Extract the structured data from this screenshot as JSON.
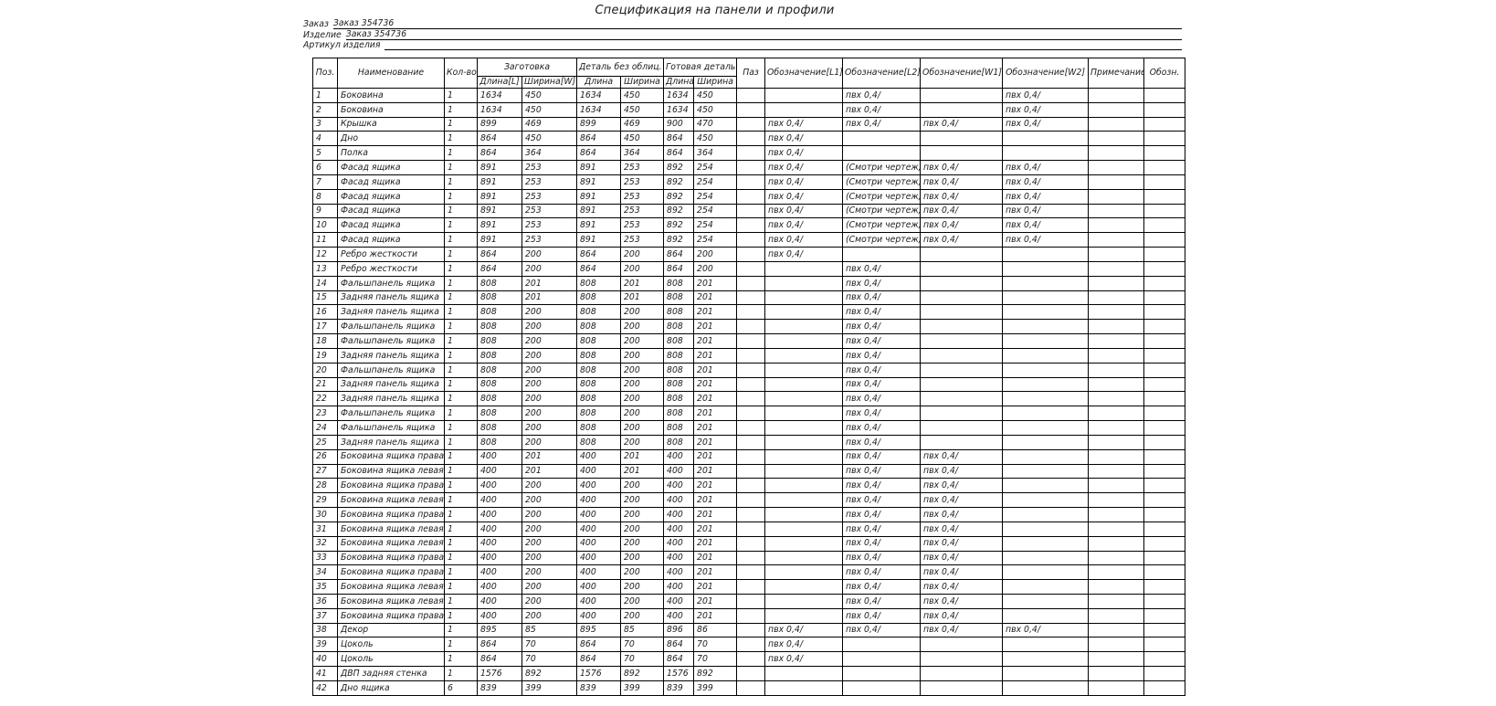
{
  "title": "Спецификация на панели и профили",
  "fields": [
    {
      "label": "Заказ",
      "value": "Заказ 354736"
    },
    {
      "label": "Изделие",
      "value": "Заказ 354736"
    },
    {
      "label": "Артикул изделия",
      "value": ""
    }
  ],
  "table": {
    "header": {
      "pos": "Поз.",
      "name": "Наименование",
      "qty": "Кол-во",
      "blank_group": "Заготовка",
      "blank_len": "Длина[L]",
      "blank_wid": "Ширина[W]",
      "nofacing_group": "Деталь без облиц.",
      "nofacing_len": "Длина",
      "nofacing_wid": "Ширина",
      "finished_group": "Готовая деталь",
      "finished_len": "Длина",
      "finished_wid": "Ширина",
      "paz": "Паз",
      "mark_l1": "Обозначение[L1]",
      "mark_l2": "Обозначение[L2]",
      "mark_w1": "Обозначение[W1]",
      "mark_w2": "Обозначение[W2]",
      "note": "Примечание",
      "obozn": "Обозн."
    },
    "rows": [
      [
        "1",
        "Боковина",
        "1",
        "1634",
        "450",
        "1634",
        "450",
        "1634",
        "450",
        "",
        "",
        "пвх 0,4/",
        "",
        "пвх 0,4/",
        "",
        ""
      ],
      [
        "2",
        "Боковина",
        "1",
        "1634",
        "450",
        "1634",
        "450",
        "1634",
        "450",
        "",
        "",
        "пвх 0,4/",
        "",
        "пвх 0,4/",
        "",
        ""
      ],
      [
        "3",
        "Крышка",
        "1",
        "899",
        "469",
        "899",
        "469",
        "900",
        "470",
        "",
        "пвх 0,4/",
        "пвх 0,4/",
        "пвх 0,4/",
        "пвх 0,4/",
        "",
        ""
      ],
      [
        "4",
        "Дно",
        "1",
        "864",
        "450",
        "864",
        "450",
        "864",
        "450",
        "",
        "пвх 0,4/",
        "",
        "",
        "",
        "",
        ""
      ],
      [
        "5",
        "Полка",
        "1",
        "864",
        "364",
        "864",
        "364",
        "864",
        "364",
        "",
        "пвх 0,4/",
        "",
        "",
        "",
        "",
        ""
      ],
      [
        "6",
        "Фасад ящика",
        "1",
        "891",
        "253",
        "891",
        "253",
        "892",
        "254",
        "",
        "пвх 0,4/",
        "(Смотри чертеж)",
        "пвх 0,4/",
        "пвх 0,4/",
        "",
        ""
      ],
      [
        "7",
        "Фасад ящика",
        "1",
        "891",
        "253",
        "891",
        "253",
        "892",
        "254",
        "",
        "пвх 0,4/",
        "(Смотри чертеж)",
        "пвх 0,4/",
        "пвх 0,4/",
        "",
        ""
      ],
      [
        "8",
        "Фасад ящика",
        "1",
        "891",
        "253",
        "891",
        "253",
        "892",
        "254",
        "",
        "пвх 0,4/",
        "(Смотри чертеж)",
        "пвх 0,4/",
        "пвх 0,4/",
        "",
        ""
      ],
      [
        "9",
        "Фасад ящика",
        "1",
        "891",
        "253",
        "891",
        "253",
        "892",
        "254",
        "",
        "пвх 0,4/",
        "(Смотри чертеж)",
        "пвх 0,4/",
        "пвх 0,4/",
        "",
        ""
      ],
      [
        "10",
        "Фасад ящика",
        "1",
        "891",
        "253",
        "891",
        "253",
        "892",
        "254",
        "",
        "пвх 0,4/",
        "(Смотри чертеж)",
        "пвх 0,4/",
        "пвх 0,4/",
        "",
        ""
      ],
      [
        "11",
        "Фасад ящика",
        "1",
        "891",
        "253",
        "891",
        "253",
        "892",
        "254",
        "",
        "пвх 0,4/",
        "(Смотри чертеж)",
        "пвх 0,4/",
        "пвх 0,4/",
        "",
        ""
      ],
      [
        "12",
        "Ребро жесткости",
        "1",
        "864",
        "200",
        "864",
        "200",
        "864",
        "200",
        "",
        "пвх 0,4/",
        "",
        "",
        "",
        "",
        ""
      ],
      [
        "13",
        "Ребро жесткости",
        "1",
        "864",
        "200",
        "864",
        "200",
        "864",
        "200",
        "",
        "",
        "пвх 0,4/",
        "",
        "",
        "",
        ""
      ],
      [
        "14",
        "Фальшпанель ящика",
        "1",
        "808",
        "201",
        "808",
        "201",
        "808",
        "201",
        "",
        "",
        "пвх 0,4/",
        "",
        "",
        "",
        ""
      ],
      [
        "15",
        "Задняя панель ящика",
        "1",
        "808",
        "201",
        "808",
        "201",
        "808",
        "201",
        "",
        "",
        "пвх 0,4/",
        "",
        "",
        "",
        ""
      ],
      [
        "16",
        "Задняя панель ящика",
        "1",
        "808",
        "200",
        "808",
        "200",
        "808",
        "201",
        "",
        "",
        "пвх 0,4/",
        "",
        "",
        "",
        ""
      ],
      [
        "17",
        "Фальшпанель ящика",
        "1",
        "808",
        "200",
        "808",
        "200",
        "808",
        "201",
        "",
        "",
        "пвх 0,4/",
        "",
        "",
        "",
        ""
      ],
      [
        "18",
        "Фальшпанель ящика",
        "1",
        "808",
        "200",
        "808",
        "200",
        "808",
        "201",
        "",
        "",
        "пвх 0,4/",
        "",
        "",
        "",
        ""
      ],
      [
        "19",
        "Задняя панель ящика",
        "1",
        "808",
        "200",
        "808",
        "200",
        "808",
        "201",
        "",
        "",
        "пвх 0,4/",
        "",
        "",
        "",
        ""
      ],
      [
        "20",
        "Фальшпанель ящика",
        "1",
        "808",
        "200",
        "808",
        "200",
        "808",
        "201",
        "",
        "",
        "пвх 0,4/",
        "",
        "",
        "",
        ""
      ],
      [
        "21",
        "Задняя панель ящика",
        "1",
        "808",
        "200",
        "808",
        "200",
        "808",
        "201",
        "",
        "",
        "пвх 0,4/",
        "",
        "",
        "",
        ""
      ],
      [
        "22",
        "Задняя панель ящика",
        "1",
        "808",
        "200",
        "808",
        "200",
        "808",
        "201",
        "",
        "",
        "пвх 0,4/",
        "",
        "",
        "",
        ""
      ],
      [
        "23",
        "Фальшпанель ящика",
        "1",
        "808",
        "200",
        "808",
        "200",
        "808",
        "201",
        "",
        "",
        "пвх 0,4/",
        "",
        "",
        "",
        ""
      ],
      [
        "24",
        "Фальшпанель ящика",
        "1",
        "808",
        "200",
        "808",
        "200",
        "808",
        "201",
        "",
        "",
        "пвх 0,4/",
        "",
        "",
        "",
        ""
      ],
      [
        "25",
        "Задняя панель ящика",
        "1",
        "808",
        "200",
        "808",
        "200",
        "808",
        "201",
        "",
        "",
        "пвх 0,4/",
        "",
        "",
        "",
        ""
      ],
      [
        "26",
        "Боковина ящика правая",
        "1",
        "400",
        "201",
        "400",
        "201",
        "400",
        "201",
        "",
        "",
        "пвх 0,4/",
        "пвх 0,4/",
        "",
        "",
        ""
      ],
      [
        "27",
        "Боковина ящика левая",
        "1",
        "400",
        "201",
        "400",
        "201",
        "400",
        "201",
        "",
        "",
        "пвх 0,4/",
        "пвх 0,4/",
        "",
        "",
        ""
      ],
      [
        "28",
        "Боковина ящика правая",
        "1",
        "400",
        "200",
        "400",
        "200",
        "400",
        "201",
        "",
        "",
        "пвх 0,4/",
        "пвх 0,4/",
        "",
        "",
        ""
      ],
      [
        "29",
        "Боковина ящика левая",
        "1",
        "400",
        "200",
        "400",
        "200",
        "400",
        "201",
        "",
        "",
        "пвх 0,4/",
        "пвх 0,4/",
        "",
        "",
        ""
      ],
      [
        "30",
        "Боковина ящика правая",
        "1",
        "400",
        "200",
        "400",
        "200",
        "400",
        "201",
        "",
        "",
        "пвх 0,4/",
        "пвх 0,4/",
        "",
        "",
        ""
      ],
      [
        "31",
        "Боковина ящика левая",
        "1",
        "400",
        "200",
        "400",
        "200",
        "400",
        "201",
        "",
        "",
        "пвх 0,4/",
        "пвх 0,4/",
        "",
        "",
        ""
      ],
      [
        "32",
        "Боковина ящика левая",
        "1",
        "400",
        "200",
        "400",
        "200",
        "400",
        "201",
        "",
        "",
        "пвх 0,4/",
        "пвх 0,4/",
        "",
        "",
        ""
      ],
      [
        "33",
        "Боковина ящика правая",
        "1",
        "400",
        "200",
        "400",
        "200",
        "400",
        "201",
        "",
        "",
        "пвх 0,4/",
        "пвх 0,4/",
        "",
        "",
        ""
      ],
      [
        "34",
        "Боковина ящика правая",
        "1",
        "400",
        "200",
        "400",
        "200",
        "400",
        "201",
        "",
        "",
        "пвх 0,4/",
        "пвх 0,4/",
        "",
        "",
        ""
      ],
      [
        "35",
        "Боковина ящика левая",
        "1",
        "400",
        "200",
        "400",
        "200",
        "400",
        "201",
        "",
        "",
        "пвх 0,4/",
        "пвх 0,4/",
        "",
        "",
        ""
      ],
      [
        "36",
        "Боковина ящика левая",
        "1",
        "400",
        "200",
        "400",
        "200",
        "400",
        "201",
        "",
        "",
        "пвх 0,4/",
        "пвх 0,4/",
        "",
        "",
        ""
      ],
      [
        "37",
        "Боковина ящика правая",
        "1",
        "400",
        "200",
        "400",
        "200",
        "400",
        "201",
        "",
        "",
        "пвх 0,4/",
        "пвх 0,4/",
        "",
        "",
        ""
      ],
      [
        "38",
        "Декор",
        "1",
        "895",
        "85",
        "895",
        "85",
        "896",
        "86",
        "",
        "пвх 0,4/",
        "пвх 0,4/",
        "пвх 0,4/",
        "пвх 0,4/",
        "",
        ""
      ],
      [
        "39",
        "Цоколь",
        "1",
        "864",
        "70",
        "864",
        "70",
        "864",
        "70",
        "",
        "пвх 0,4/",
        "",
        "",
        "",
        "",
        ""
      ],
      [
        "40",
        "Цоколь",
        "1",
        "864",
        "70",
        "864",
        "70",
        "864",
        "70",
        "",
        "пвх 0,4/",
        "",
        "",
        "",
        "",
        ""
      ],
      [
        "41",
        "ДВП задняя стенка",
        "1",
        "1576",
        "892",
        "1576",
        "892",
        "1576",
        "892",
        "",
        "",
        "",
        "",
        "",
        "",
        ""
      ],
      [
        "42",
        "Дно ящика",
        "6",
        "839",
        "399",
        "839",
        "399",
        "839",
        "399",
        "",
        "",
        "",
        "",
        "",
        "",
        ""
      ]
    ]
  }
}
